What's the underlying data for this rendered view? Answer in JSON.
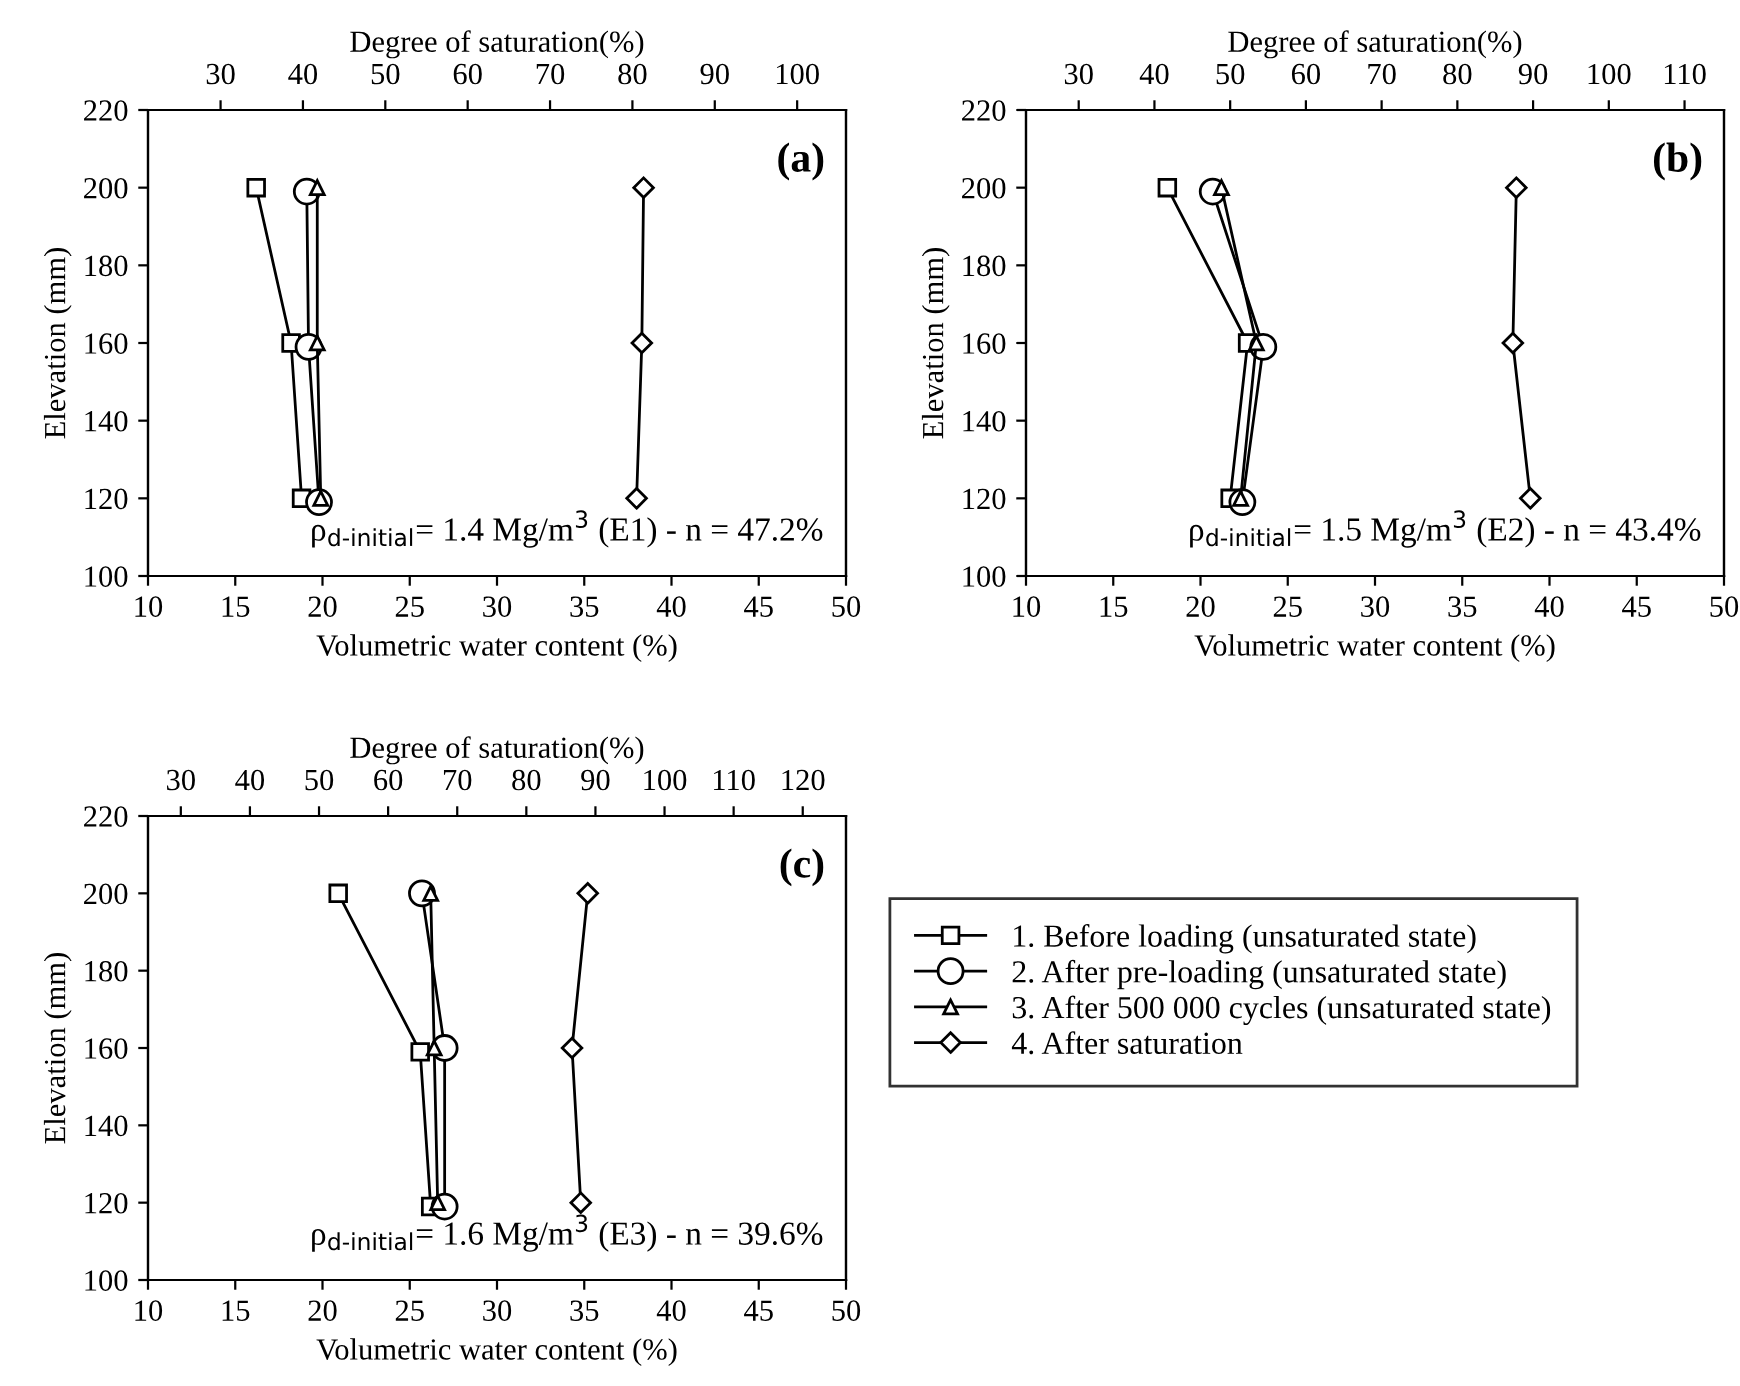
{
  "chart_data": [
    {
      "type": "line",
      "xlabel": "Volumetric water content (%)",
      "ylabel": "Elevation (mm)",
      "x2label": "Degree of saturation(%)",
      "xlim": [
        10,
        50
      ],
      "xticks": [
        10,
        15,
        20,
        25,
        30,
        35,
        40,
        45,
        50
      ],
      "ylim": [
        100,
        220
      ],
      "yticks": [
        100,
        120,
        140,
        160,
        180,
        200,
        220
      ],
      "x2lim": [
        21.19,
        105.93
      ],
      "x2ticks": [
        30,
        40,
        50,
        60,
        70,
        80,
        90,
        100
      ],
      "grid": false,
      "line_style": "solid",
      "annotations": [
        "(a)",
        "ρ$_{d-initial}$= 1.4 Mg/m$^{3}$ (E1) - n = 47.2%"
      ],
      "series": [
        {
          "color": "#000000",
          "marker": "square",
          "x": [
            16.2,
            18.2,
            18.8
          ],
          "values": [
            200,
            160,
            120
          ]
        },
        {
          "color": "#000000",
          "marker": "circle",
          "x": [
            19.1,
            19.2,
            19.8
          ],
          "values": [
            199,
            159,
            119
          ]
        },
        {
          "color": "#000000",
          "marker": "triangle",
          "x": [
            19.7,
            19.7,
            19.9
          ],
          "values": [
            200,
            160,
            120
          ]
        },
        {
          "color": "#000000",
          "marker": "diamond",
          "x": [
            38.4,
            38.3,
            38.0
          ],
          "values": [
            200,
            160,
            120
          ]
        }
      ]
    },
    {
      "type": "line",
      "xlabel": "Volumetric water content (%)",
      "ylabel": "Elevation (mm)",
      "x2label": "Degree of saturation(%)",
      "xlim": [
        10,
        50
      ],
      "xticks": [
        10,
        15,
        20,
        25,
        30,
        35,
        40,
        45,
        50
      ],
      "ylim": [
        100,
        220
      ],
      "yticks": [
        100,
        120,
        140,
        160,
        180,
        200,
        220
      ],
      "x2lim": [
        23.04,
        115.21
      ],
      "x2ticks": [
        30,
        40,
        50,
        60,
        70,
        80,
        90,
        100,
        110
      ],
      "grid": false,
      "line_style": "solid",
      "annotations": [
        "(b)",
        "ρ$_{d-initial}$= 1.5 Mg/m$^{3}$ (E2) - n = 43.4%"
      ],
      "series": [
        {
          "color": "#000000",
          "marker": "square",
          "x": [
            18.1,
            22.7,
            21.7
          ],
          "values": [
            200,
            160,
            120
          ]
        },
        {
          "color": "#000000",
          "marker": "circle",
          "x": [
            20.7,
            23.6,
            22.4
          ],
          "values": [
            199,
            159,
            119
          ]
        },
        {
          "color": "#000000",
          "marker": "triangle",
          "x": [
            21.2,
            23.2,
            22.3
          ],
          "values": [
            200,
            160,
            120
          ]
        },
        {
          "color": "#000000",
          "marker": "diamond",
          "x": [
            38.1,
            37.9,
            38.9
          ],
          "values": [
            200,
            160,
            120
          ]
        }
      ]
    },
    {
      "type": "line",
      "xlabel": "Volumetric water content (%)",
      "ylabel": "Elevation (mm)",
      "x2label": "Degree of saturation(%)",
      "xlim": [
        10,
        50
      ],
      "xticks": [
        10,
        15,
        20,
        25,
        30,
        35,
        40,
        45,
        50
      ],
      "ylim": [
        100,
        220
      ],
      "yticks": [
        100,
        120,
        140,
        160,
        180,
        200,
        220
      ],
      "x2lim": [
        25.25,
        126.26
      ],
      "x2ticks": [
        30,
        40,
        50,
        60,
        70,
        80,
        90,
        100,
        110,
        120
      ],
      "grid": false,
      "line_style": "solid",
      "legend": "right",
      "annotations": [
        "(c)",
        "ρ$_{d-initial}$= 1.6 Mg/m$^{3}$ (E3) - n = 39.6%"
      ],
      "series": [
        {
          "name": "1. Before loading (unsaturated state)",
          "color": "#000000",
          "marker": "square",
          "x": [
            20.9,
            25.6,
            26.2
          ],
          "values": [
            200,
            159,
            119
          ]
        },
        {
          "name": "2. After pre-loading (unsaturated state)",
          "color": "#000000",
          "marker": "circle",
          "x": [
            25.7,
            27.0,
            27.0
          ],
          "values": [
            200,
            160,
            119
          ]
        },
        {
          "name": "3. After 500 000 cycles (unsaturated state)",
          "color": "#000000",
          "marker": "triangle",
          "x": [
            26.2,
            26.4,
            26.6
          ],
          "values": [
            200,
            160,
            120
          ]
        },
        {
          "name": "4. After saturation",
          "color": "#000000",
          "marker": "diamond",
          "x": [
            35.2,
            34.3,
            34.8
          ],
          "values": [
            200,
            160,
            120
          ]
        }
      ]
    }
  ]
}
